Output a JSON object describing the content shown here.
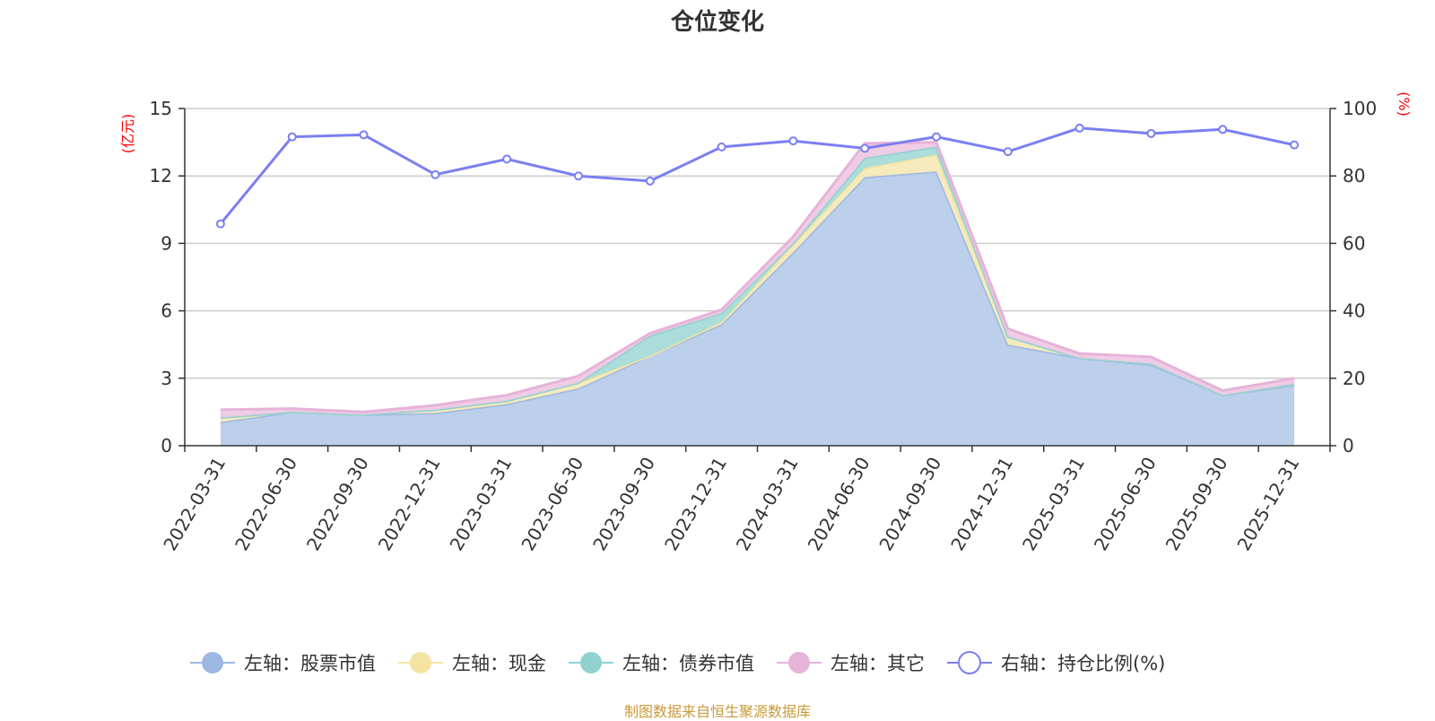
{
  "chart_data": {
    "type": "area",
    "title": "仓位变化",
    "categories": [
      "2022-03-31",
      "2022-06-30",
      "2022-09-30",
      "2022-12-31",
      "2023-03-31",
      "2023-06-30",
      "2023-09-30",
      "2023-12-31",
      "2024-03-31",
      "2024-06-30",
      "2024-09-30",
      "2024-12-31",
      "2025-03-31",
      "2025-06-30",
      "2025-09-30",
      "2025-12-31"
    ],
    "left_axis": {
      "label": "(亿元)",
      "ylim": [
        0,
        15
      ],
      "ticks": [
        0,
        3,
        6,
        9,
        12,
        15
      ]
    },
    "right_axis": {
      "label": "(%)",
      "ylim": [
        0,
        100
      ],
      "ticks": [
        0,
        20,
        40,
        60,
        80,
        100
      ]
    },
    "series": [
      {
        "name": "左轴：股票市值",
        "axis": "left",
        "type": "area",
        "color": "#9db8e2",
        "fill": "#b8cdeb",
        "values": [
          1.05,
          1.5,
          1.38,
          1.45,
          1.85,
          2.55,
          4.0,
          5.4,
          8.6,
          11.95,
          12.2,
          4.5,
          3.9,
          3.6,
          2.25,
          2.7
        ]
      },
      {
        "name": "左轴：现金",
        "axis": "left",
        "type": "area",
        "color": "#f4e3a1",
        "fill": "#f7eab9",
        "values": [
          0.2,
          0.0,
          0.0,
          0.15,
          0.15,
          0.25,
          0.0,
          0.1,
          0.35,
          0.4,
          0.75,
          0.35,
          0.0,
          0.05,
          0.0,
          0.05
        ]
      },
      {
        "name": "左轴：债券市值",
        "axis": "left",
        "type": "area",
        "color": "#8fd2d0",
        "fill": "#a6dcd9",
        "values": [
          0.0,
          0.0,
          0.0,
          0.0,
          0.0,
          0.0,
          0.9,
          0.4,
          0.05,
          0.45,
          0.35,
          0.0,
          0.0,
          0.0,
          0.0,
          0.0
        ]
      },
      {
        "name": "左轴：其它",
        "axis": "left",
        "type": "area",
        "color": "#e6b3d9",
        "fill": "#efc9e4",
        "values": [
          0.35,
          0.15,
          0.12,
          0.2,
          0.25,
          0.3,
          0.1,
          0.15,
          0.3,
          0.65,
          0.2,
          0.35,
          0.2,
          0.3,
          0.2,
          0.25
        ]
      },
      {
        "name": "右轴：持仓比例(%)",
        "axis": "right",
        "type": "line",
        "color": "#7b7ff0",
        "values": [
          65.8,
          91.6,
          92.2,
          80.4,
          85.0,
          80.0,
          78.5,
          88.6,
          90.4,
          88.2,
          91.6,
          87.2,
          94.2,
          92.6,
          93.8,
          89.2
        ]
      }
    ],
    "legend_position": "bottom",
    "grid": true
  },
  "footer": {
    "source": "制图数据来自恒生聚源数据库"
  }
}
